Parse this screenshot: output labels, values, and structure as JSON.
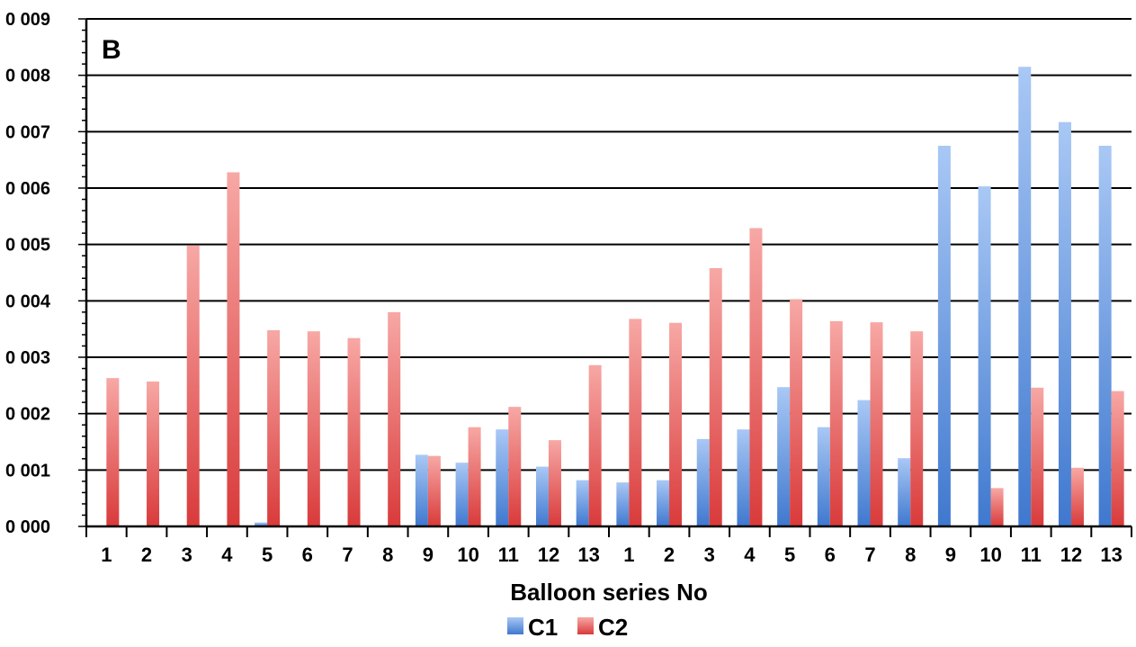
{
  "chart_data": {
    "type": "bar",
    "panel_label": "B",
    "xlabel": "Balloon series No",
    "ylabel": "",
    "ylim": [
      0,
      0.009
    ],
    "y_ticks": [
      "0 000",
      "0 001",
      "0 002",
      "0 003",
      "0 004",
      "0 005",
      "0 006",
      "0 007",
      "0 008",
      "0 009"
    ],
    "grid": true,
    "legend_position": "bottom",
    "categories": [
      "1",
      "2",
      "3",
      "4",
      "5",
      "6",
      "7",
      "8",
      "9",
      "10",
      "11",
      "12",
      "13",
      "1",
      "2",
      "3",
      "4",
      "5",
      "6",
      "7",
      "8",
      "9",
      "10",
      "11",
      "12",
      "13"
    ],
    "series": [
      {
        "name": "C1",
        "color": "#4f86d6",
        "values": [
          0,
          0,
          0,
          0,
          7e-05,
          0,
          0,
          0,
          0.00127,
          0.00113,
          0.00172,
          0.00106,
          0.00082,
          0.00078,
          0.00082,
          0.00155,
          0.00172,
          0.00247,
          0.00176,
          0.00224,
          0.00121,
          0.00675,
          0.00603,
          0.00815,
          0.00717,
          0.00675
        ]
      },
      {
        "name": "C2",
        "color": "#e04848",
        "values": [
          0.00263,
          0.00257,
          0.00498,
          0.00628,
          0.00348,
          0.00346,
          0.00334,
          0.0038,
          0.00125,
          0.00176,
          0.00212,
          0.00153,
          0.00286,
          0.00368,
          0.00361,
          0.00458,
          0.00529,
          0.00403,
          0.00364,
          0.00362,
          0.00346,
          0,
          0.00068,
          0.00246,
          0.00104,
          0.0024
        ]
      }
    ]
  }
}
